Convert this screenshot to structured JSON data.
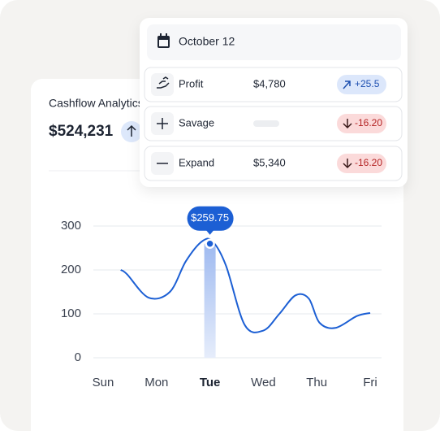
{
  "card": {
    "title": "Cashflow Analytics",
    "amount": "$524,231"
  },
  "popover": {
    "date": "October 12",
    "rows": [
      {
        "label": "Profit",
        "value": "$4,780",
        "change": "+25.5",
        "direction": "up"
      },
      {
        "label": "Savage",
        "value": null,
        "change": "-16.20",
        "direction": "down"
      },
      {
        "label": "Expand",
        "value": "$5,340",
        "change": "-16.20",
        "direction": "down"
      }
    ]
  },
  "chart_data": {
    "type": "line",
    "color": "#1c5fd4",
    "x": [
      0.33,
      0.45,
      0.85,
      1.25,
      1.55,
      1.85,
      2.05,
      2.3,
      2.65,
      3.0,
      3.3,
      3.6,
      3.85,
      4.05,
      4.35,
      4.75,
      5.0
    ],
    "values": [
      200,
      190,
      137,
      150,
      220,
      265,
      265,
      210,
      75,
      62,
      100,
      142,
      135,
      80,
      68,
      95,
      102
    ],
    "xlim": [
      0,
      5
    ],
    "xticks": [
      {
        "value": 0,
        "label": "Sun"
      },
      {
        "value": 1,
        "label": "Mon"
      },
      {
        "value": 2,
        "label": "Tue"
      },
      {
        "value": 3,
        "label": "Wed"
      },
      {
        "value": 4,
        "label": "Thu"
      },
      {
        "value": 5,
        "label": "Fri"
      }
    ],
    "ylim": [
      0,
      300
    ],
    "yticks": [
      0,
      100,
      200,
      300
    ],
    "grid": true,
    "highlight": {
      "x": 2,
      "value": 259.75,
      "label": "$259.75"
    }
  }
}
